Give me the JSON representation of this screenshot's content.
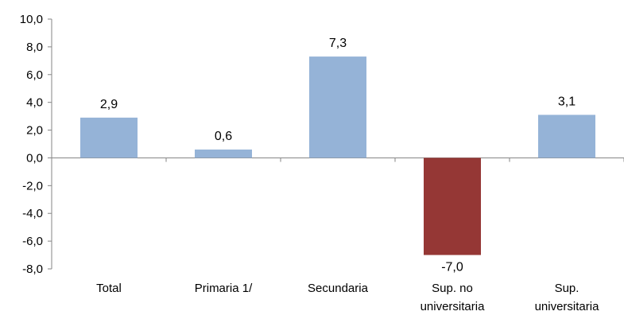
{
  "chart_data": {
    "type": "bar",
    "title": "",
    "xlabel": "",
    "ylabel": "",
    "categories": [
      [
        "Total"
      ],
      [
        "Primaria 1/"
      ],
      [
        "Secundaria"
      ],
      [
        "Sup. no",
        "universitaria"
      ],
      [
        "Sup.",
        "universitaria"
      ]
    ],
    "values": [
      2.9,
      0.6,
      7.3,
      -7.0,
      3.1
    ],
    "value_labels": [
      "2,9",
      "0,6",
      "7,3",
      "-7,0",
      "3,1"
    ],
    "ylim": [
      -8,
      10
    ],
    "yticks": [
      10,
      8,
      6,
      4,
      2,
      0,
      -2,
      -4,
      -6,
      -8
    ],
    "ytick_labels": [
      "10,0",
      "8,0",
      "6,0",
      "4,0",
      "2,0",
      "0,0",
      "-2,0",
      "-4,0",
      "-6,0",
      "-8,0"
    ],
    "grid": false,
    "legend": "none",
    "colors": {
      "positive": "#95B3D7",
      "negative": "#953735",
      "axis": "#868686"
    }
  }
}
